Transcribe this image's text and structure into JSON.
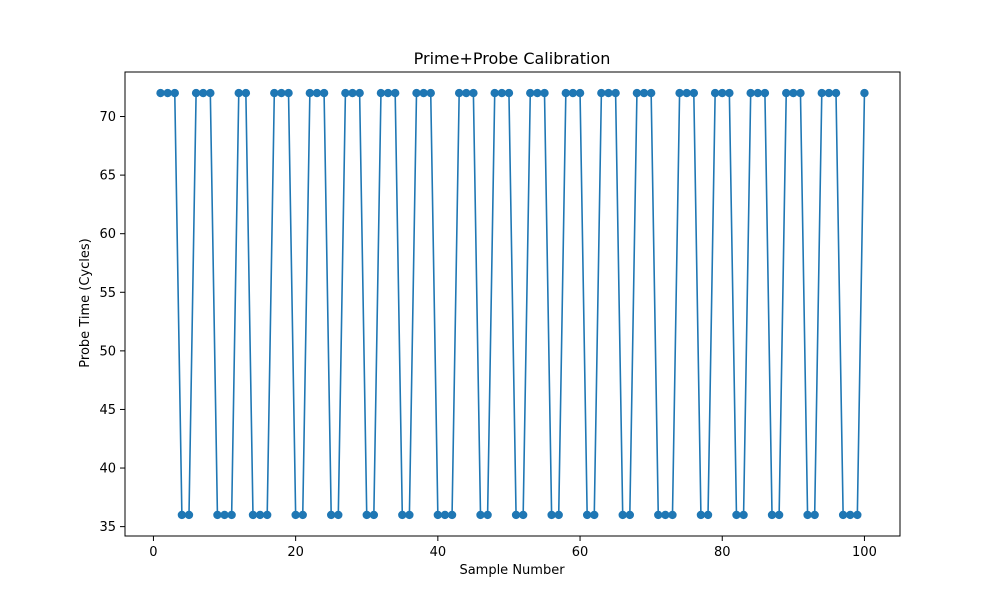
{
  "chart_data": {
    "type": "line",
    "title": "Prime+Probe Calibration",
    "xlabel": "Sample Number",
    "ylabel": "Probe Time (Cycles)",
    "xlim": [
      -4,
      105
    ],
    "ylim": [
      34.2,
      73.8
    ],
    "xticks": [
      0,
      20,
      40,
      60,
      80,
      100
    ],
    "yticks": [
      35,
      40,
      45,
      50,
      55,
      60,
      65,
      70
    ],
    "grid": false,
    "legend": "none",
    "marker": "circle",
    "series": [
      {
        "color": "#1f77b4",
        "x": [
          1,
          2,
          3,
          4,
          5,
          6,
          7,
          8,
          9,
          10,
          11,
          12,
          13,
          14,
          15,
          16,
          17,
          18,
          19,
          20,
          21,
          22,
          23,
          24,
          25,
          26,
          27,
          28,
          29,
          30,
          31,
          32,
          33,
          34,
          35,
          36,
          37,
          38,
          39,
          40,
          41,
          42,
          43,
          44,
          45,
          46,
          47,
          48,
          49,
          50,
          51,
          52,
          53,
          54,
          55,
          56,
          57,
          58,
          59,
          60,
          61,
          62,
          63,
          64,
          65,
          66,
          67,
          68,
          69,
          70,
          71,
          72,
          73,
          74,
          75,
          76,
          77,
          78,
          79,
          80,
          81,
          82,
          83,
          84,
          85,
          86,
          87,
          88,
          89,
          90,
          91,
          92,
          93,
          94,
          95,
          96,
          97,
          98,
          99,
          100
        ],
        "y": [
          72,
          72,
          72,
          36,
          36,
          72,
          72,
          72,
          36,
          36,
          36,
          72,
          72,
          36,
          36,
          36,
          72,
          72,
          72,
          36,
          36,
          72,
          72,
          72,
          36,
          36,
          72,
          72,
          72,
          36,
          36,
          72,
          72,
          72,
          36,
          36,
          72,
          72,
          72,
          36,
          36,
          36,
          72,
          72,
          72,
          36,
          36,
          72,
          72,
          72,
          36,
          36,
          72,
          72,
          72,
          36,
          36,
          72,
          72,
          72,
          36,
          36,
          72,
          72,
          72,
          36,
          36,
          72,
          72,
          72,
          36,
          36,
          36,
          72,
          72,
          72,
          36,
          36,
          72,
          72,
          72,
          36,
          36,
          72,
          72,
          72,
          36,
          36,
          72,
          72,
          72,
          36,
          36,
          72,
          72,
          72,
          36,
          36,
          36,
          72
        ]
      }
    ]
  }
}
